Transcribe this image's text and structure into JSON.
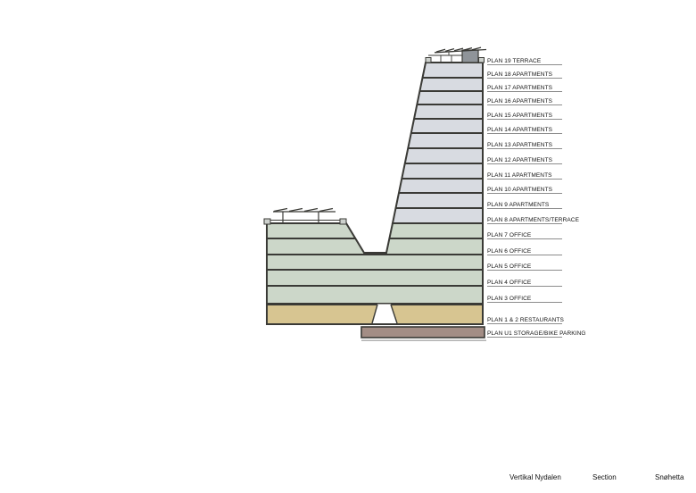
{
  "page": {
    "background": "#ffffff"
  },
  "palette": {
    "apartments": "#d8dbe1",
    "office": "#ccd7c9",
    "restaurants": "#d7c591",
    "basement": "#a38d85",
    "outline": "#3a3a36",
    "roof_box": "#8f9499",
    "corner_block": "#cdd1cd",
    "label_line": "#8c8c8c",
    "ground_line": "#aaaaaa",
    "text": "#111111"
  },
  "section_drawing": {
    "floor_labels": [
      "PLAN 19 TERRACE",
      "PLAN 18  APARTMENTS",
      "PLAN 17  APARTMENTS",
      "PLAN 16  APARTMENTS",
      "PLAN 15  APARTMENTS",
      "PLAN 14  APARTMENTS",
      "PLAN 13  APARTMENTS",
      "PLAN 12  APARTMENTS",
      "PLAN 11  APARTMENTS",
      "PLAN 10  APARTMENTS",
      "PLAN 9  APARTMENTS",
      "PLAN 8  APARTMENTS/TERRACE",
      "PLAN 7  OFFICE",
      "PLAN 6  OFFICE",
      "PLAN 5  OFFICE",
      "PLAN 4  OFFICE",
      "PLAN 3  OFFICE",
      "PLAN 1 & 2 RESTAURANTS",
      "PLAN U1 STORAGE/BIKE PARKING"
    ]
  },
  "title_block": {
    "project": "Vertikal Nydalen",
    "drawing": "Section",
    "firm": "Snøhetta"
  }
}
